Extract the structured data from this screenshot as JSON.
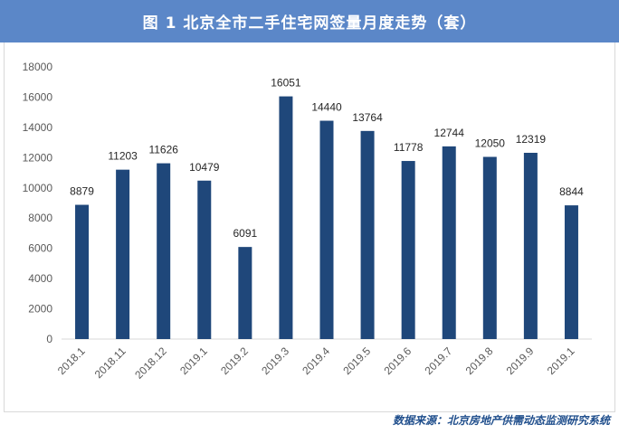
{
  "title": "图 1    北京全市二手住宅网签量月度走势（套）",
  "source": "数据来源：北京房地产供需动态监测研究系统",
  "colors": {
    "bar": "#1f477a",
    "title_bg": "#5b87c8",
    "axis_text": "#595959"
  },
  "chart_data": {
    "type": "bar",
    "categories": [
      "2018.1",
      "2018.11",
      "2018.12",
      "2019.1",
      "2019.2",
      "2019.3",
      "2019.4",
      "2019.5",
      "2019.6",
      "2019.7",
      "2019.8",
      "2019.9",
      "2019.1"
    ],
    "values": [
      8879,
      11203,
      11626,
      10479,
      6091,
      16051,
      14440,
      13764,
      11778,
      12744,
      12050,
      12319,
      8844
    ],
    "ylim": [
      0,
      18000
    ],
    "yticks": [
      0,
      2000,
      4000,
      6000,
      8000,
      10000,
      12000,
      14000,
      16000,
      18000
    ],
    "grid": false,
    "legend": "none"
  }
}
